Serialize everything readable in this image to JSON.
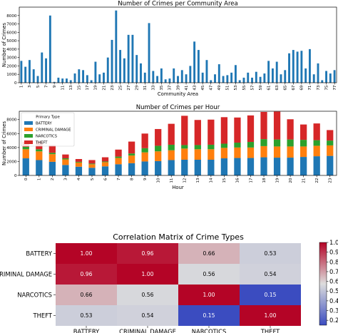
{
  "chart_data": [
    {
      "type": "bar",
      "title": "Number of Crimes per Community Area",
      "xlabel": "Community Area",
      "ylabel": "Number of Crimes",
      "ylim": [
        0,
        9000
      ],
      "yticks": [
        0,
        1000,
        2000,
        3000,
        4000,
        5000,
        6000,
        7000,
        8000
      ],
      "grid": false,
      "color": "#1f77b4",
      "categories": [
        "1",
        "2",
        "3",
        "4",
        "5",
        "6",
        "7",
        "8",
        "9",
        "10",
        "11",
        "12",
        "13",
        "14",
        "15",
        "16",
        "17",
        "18",
        "19",
        "20",
        "21",
        "22",
        "23",
        "24",
        "25",
        "26",
        "27",
        "28",
        "29",
        "30",
        "31",
        "32",
        "33",
        "34",
        "35",
        "36",
        "37",
        "38",
        "39",
        "40",
        "41",
        "42",
        "43",
        "44",
        "45",
        "46",
        "47",
        "48",
        "49",
        "50",
        "51",
        "52",
        "53",
        "54",
        "55",
        "56",
        "57",
        "58",
        "59",
        "60",
        "61",
        "62",
        "63",
        "64",
        "65",
        "66",
        "67",
        "68",
        "69",
        "70",
        "71",
        "72",
        "73",
        "74",
        "75",
        "76",
        "77"
      ],
      "values": [
        2600,
        1900,
        2700,
        1600,
        800,
        3600,
        2900,
        8000,
        100,
        600,
        500,
        500,
        300,
        1100,
        1600,
        1500,
        900,
        300,
        2500,
        1000,
        1200,
        3000,
        5100,
        8600,
        3900,
        2900,
        5700,
        5700,
        3300,
        2300,
        1200,
        7100,
        1400,
        800,
        1700,
        400,
        500,
        1700,
        800,
        1500,
        1000,
        2000,
        4900,
        3900,
        1200,
        2700,
        300,
        1000,
        2200,
        800,
        900,
        1200,
        2100,
        300,
        600,
        1200,
        600,
        1300,
        700,
        1100,
        2600,
        1700,
        2500,
        1000,
        1500,
        3500,
        3900,
        3700,
        3800,
        1700,
        4000,
        1000,
        2300,
        300,
        1400,
        1100,
        1500
      ],
      "xtick_labels_shown": [
        "1",
        "3",
        "5",
        "7",
        "9",
        "11",
        "13",
        "15",
        "17",
        "19",
        "21",
        "23",
        "25",
        "27",
        "29",
        "31",
        "33",
        "35",
        "37",
        "39",
        "41",
        "43",
        "45",
        "47",
        "49",
        "51",
        "53",
        "55",
        "57",
        "59",
        "61",
        "63",
        "65",
        "67",
        "69",
        "71",
        "73",
        "75",
        "77"
      ]
    },
    {
      "type": "bar",
      "stacked": true,
      "title": "Number of Crimes per Hour",
      "xlabel": "Hour",
      "ylabel": "Number of Crimes",
      "ylim": [
        0,
        9200
      ],
      "yticks": [
        0,
        2000,
        4000,
        6000,
        8000
      ],
      "legend_title": "Primary Type",
      "legend_position": "top-left",
      "grid": false,
      "categories": [
        "0",
        "1",
        "2",
        "3",
        "4",
        "5",
        "6",
        "7",
        "8",
        "9",
        "10",
        "11",
        "12",
        "13",
        "14",
        "15",
        "16",
        "17",
        "18",
        "19",
        "20",
        "21",
        "22",
        "23"
      ],
      "series": [
        {
          "name": "BATTERY",
          "color": "#1f77b4",
          "values": [
            2450,
            2200,
            1950,
            1500,
            1250,
            1100,
            1300,
            1600,
            1750,
            2000,
            2050,
            2200,
            2250,
            2250,
            2250,
            2450,
            2500,
            2500,
            2600,
            2550,
            2550,
            2650,
            2750,
            2800
          ]
        },
        {
          "name": "CRIMINAL DAMAGE",
          "color": "#ff7f0e",
          "values": [
            1300,
            1250,
            1100,
            800,
            600,
            500,
            600,
            900,
            1100,
            1300,
            1400,
            1400,
            1600,
            1500,
            1500,
            1500,
            1500,
            1500,
            1600,
            1600,
            1600,
            1500,
            1500,
            1500
          ]
        },
        {
          "name": "NARCOTICS",
          "color": "#2ca02c",
          "values": [
            350,
            300,
            200,
            150,
            100,
            100,
            100,
            200,
            300,
            600,
            800,
            800,
            500,
            600,
            650,
            600,
            700,
            800,
            1000,
            1000,
            1000,
            950,
            800,
            700
          ]
        },
        {
          "name": "THEFT",
          "color": "#d62728",
          "values": [
            700,
            1200,
            1100,
            550,
            400,
            500,
            600,
            1000,
            1700,
            2100,
            2400,
            3000,
            4200,
            3600,
            3600,
            3800,
            3600,
            3800,
            3900,
            4000,
            2900,
            2200,
            2400,
            1500
          ]
        }
      ],
      "xtick_labels_shown": [
        "0",
        "1",
        "2",
        "3",
        "4",
        "5",
        "6",
        "7",
        "8",
        "9",
        "10",
        "11",
        "12",
        "13",
        "14",
        "15",
        "16",
        "17",
        "18",
        "19",
        "20",
        "21",
        "22",
        "23"
      ]
    },
    {
      "type": "heatmap",
      "title": "Correlation Matrix of Crime Types",
      "rows": [
        "BATTERY",
        "CRIMINAL DAMAGE",
        "NARCOTICS",
        "THEFT"
      ],
      "cols": [
        "BATTERY",
        "CRIMINAL DAMAGE",
        "NARCOTICS",
        "THEFT"
      ],
      "values": [
        [
          1.0,
          0.96,
          0.66,
          0.53
        ],
        [
          0.96,
          1.0,
          0.56,
          0.54
        ],
        [
          0.66,
          0.56,
          1.0,
          0.15
        ],
        [
          0.53,
          0.54,
          0.15,
          1.0
        ]
      ],
      "value_labels": [
        [
          "1.00",
          "0.96",
          "0.66",
          "0.53"
        ],
        [
          "0.96",
          "1.00",
          "0.56",
          "0.54"
        ],
        [
          "0.66",
          "0.56",
          "1.00",
          "0.15"
        ],
        [
          "0.53",
          "0.54",
          "0.15",
          "1.00"
        ]
      ],
      "colormap": "coolwarm",
      "colorbar_range": [
        0.15,
        1.0
      ],
      "colorbar_ticks": [
        "0.2",
        "0.3",
        "0.4",
        "0.5",
        "0.6",
        "0.7",
        "0.8",
        "0.9",
        "1.0"
      ]
    }
  ]
}
